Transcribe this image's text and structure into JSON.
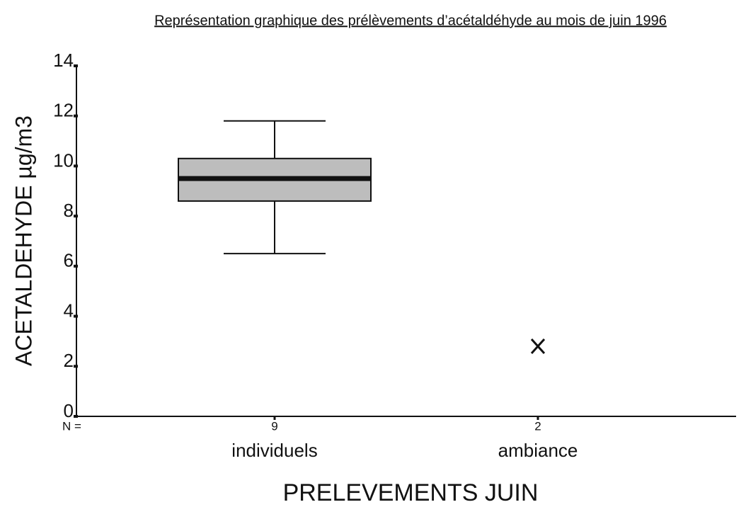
{
  "chart_data": {
    "type": "box",
    "title": "Représentation graphique des prélèvements d’acétaldéhyde au mois de juin 1996",
    "y_label": "ACETALDEHYDE µg/m3",
    "x_label": "PRELEVEMENTS JUIN",
    "categories": [
      "individuels",
      "ambiance"
    ],
    "n_label": "N =",
    "n": [
      9,
      2
    ],
    "boxes": [
      {
        "whisker_low": 6.5,
        "q1": 8.6,
        "median": 9.5,
        "q3": 10.3,
        "whisker_high": 11.8
      },
      null
    ],
    "points": [
      null,
      2.8
    ],
    "color": "#bdbdbd",
    "ylim": [
      0,
      14
    ],
    "yticks": [
      0,
      2,
      4,
      6,
      8,
      10,
      12,
      14
    ]
  }
}
